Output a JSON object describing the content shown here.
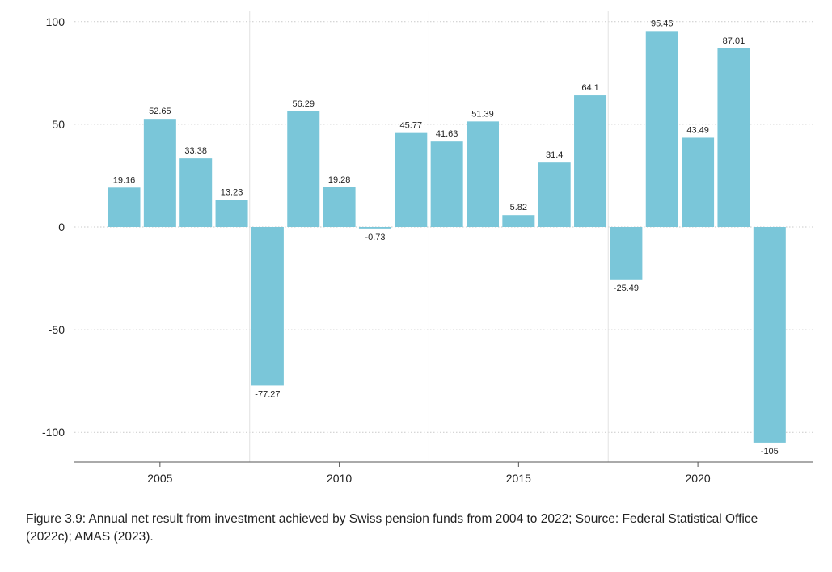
{
  "chart_data": {
    "type": "bar",
    "x": [
      2004,
      2005,
      2006,
      2007,
      2008,
      2009,
      2010,
      2011,
      2012,
      2013,
      2014,
      2015,
      2016,
      2017,
      2018,
      2019,
      2020,
      2021,
      2022
    ],
    "values": [
      19.16,
      52.65,
      33.38,
      13.23,
      -77.27,
      56.29,
      19.28,
      -0.73,
      45.77,
      41.63,
      51.39,
      5.82,
      31.4,
      64.1,
      -25.49,
      95.46,
      43.49,
      87.01,
      -105
    ],
    "data_labels": [
      "19.16",
      "52.65",
      "33.38",
      "13.23",
      "-77.27",
      "56.29",
      "19.28",
      "-0.73",
      "45.77",
      "41.63",
      "51.39",
      "5.82",
      "31.4",
      "64.1",
      "-25.49",
      "95.46",
      "43.49",
      "87.01",
      "-105"
    ],
    "x_ticks": [
      "2005",
      "2010",
      "2015",
      "2020"
    ],
    "y_ticks": [
      "100",
      "50",
      "0",
      "-50",
      "-100"
    ],
    "ylim": [
      -115,
      100
    ],
    "grid": true,
    "bar_color": "#7ac6d9"
  },
  "caption": "Figure 3.9: Annual net result from investment achieved by Swiss pension funds from 2004 to 2022; Source: Federal Statistical Office (2022c); AMAS (2023)."
}
